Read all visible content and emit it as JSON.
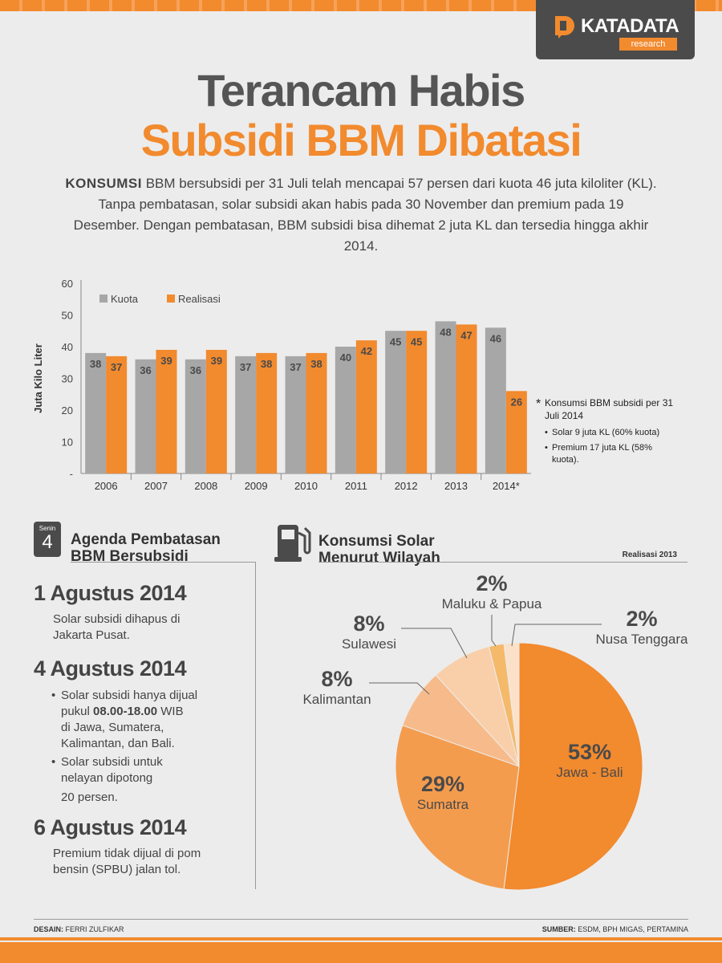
{
  "brand": {
    "name": "KATADATA",
    "sub": "research",
    "accent": "#f28a2e",
    "dark": "#4b4b4b"
  },
  "title": {
    "line1": "Terancam Habis",
    "line2": "Subsidi BBM Dibatasi"
  },
  "intro": {
    "lead": "KONSUMSI",
    "text": " BBM bersubsidi per 31 Juli telah mencapai 57 persen dari kuota 46 juta kiloliter (KL). Tanpa pembatasan, solar subsidi akan habis pada 30 November dan premium pada 19 Desember. Dengan pembatasan,  BBM subsidi bisa dihemat 2 juta KL dan tersedia hingga akhir 2014."
  },
  "chart_data": [
    {
      "type": "bar",
      "categories": [
        "2006",
        "2007",
        "2008",
        "2009",
        "2010",
        "2011",
        "2012",
        "2013",
        "2014*"
      ],
      "series": [
        {
          "name": "Kuota",
          "color": "#a7a7a7",
          "values": [
            38,
            36,
            36,
            37,
            37,
            40,
            45,
            48,
            46
          ]
        },
        {
          "name": "Realisasi",
          "color": "#f28a2e",
          "values": [
            37,
            39,
            39,
            38,
            38,
            42,
            45,
            47,
            26
          ]
        }
      ],
      "ylabel": "Juta Kilo Liter",
      "yticks": [
        "-",
        "10",
        "20",
        "30",
        "40",
        "50",
        "60"
      ],
      "ylim": [
        0,
        60
      ],
      "legend": "top-left",
      "grid": false
    },
    {
      "type": "pie",
      "title": "Konsumsi Solar Menurut Wilayah",
      "subtitle": "Realisasi 2013",
      "slices": [
        {
          "label": "Jawa - Bali",
          "value": 53,
          "pct": "53%",
          "color": "#f28a2e"
        },
        {
          "label": "Sumatra",
          "value": 29,
          "pct": "29%",
          "color": "#f49c4e"
        },
        {
          "label": "Kalimantan",
          "value": 8,
          "pct": "8%",
          "color": "#f7bb8b"
        },
        {
          "label": "Sulawesi",
          "value": 8,
          "pct": "8%",
          "color": "#f9cfa9"
        },
        {
          "label": "Maluku & Papua",
          "value": 2,
          "pct": "2%",
          "color": "#f5b96a"
        },
        {
          "label": "Nusa Tenggara",
          "value": 2,
          "pct": "2%",
          "color": "#fbe1c8"
        }
      ]
    }
  ],
  "note": {
    "star": "*",
    "head": "Konsumsi BBM subsidi per 31 Juli 2014",
    "items": [
      "Solar 9 juta KL (60% kuota)",
      "Premium 17 juta KL (58% kuota)."
    ]
  },
  "agenda": {
    "cal_day": "Senin",
    "cal_num": "4",
    "title": "Agenda Pembatasan BBM Bersubsidi",
    "d1": {
      "date": "1 Agustus 2014",
      "l1": "Solar subsidi dihapus di",
      "l2": "Jakarta Pusat."
    },
    "d2": {
      "date": "4 Agustus 2014",
      "b1a": "Solar subsidi hanya dijual",
      "b1b_pre": "pukul ",
      "b1b_bold": "08.00-18.00",
      "b1b_post": " WIB",
      "b1c": "di Jawa, Sumatera,",
      "b1d": "Kalimantan, dan Bali.",
      "b2a": "Solar subsidi untuk",
      "b2b": "nelayan dipotong",
      "b2c": "20 persen."
    },
    "d3": {
      "date": "6 Agustus 2014",
      "l1": "Premium tidak dijual di pom",
      "l2": "bensin (SPBU) jalan tol."
    }
  },
  "solar": {
    "title1": "Konsumsi Solar",
    "title2": "Menurut Wilayah"
  },
  "footer": {
    "left_label": "DESAIN:",
    "left_value": " FERRI ZULFIKAR",
    "right_label": "SUMBER:",
    "right_value": " ESDM, BPH MIGAS, PERTAMINA"
  }
}
